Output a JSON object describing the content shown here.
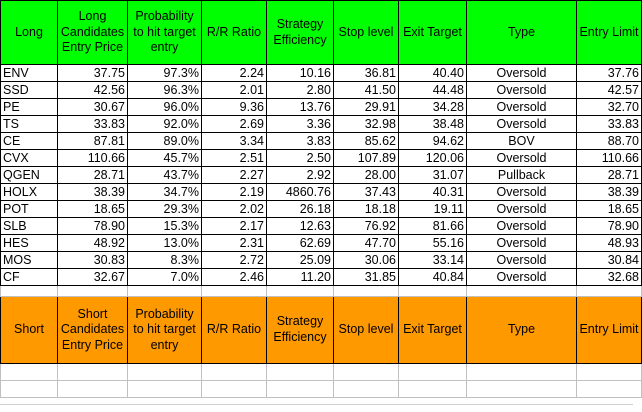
{
  "long_headers": {
    "side": "Long",
    "entry_price": "Long Candidates Entry Price",
    "probability": "Probability to hit target entry",
    "rr_ratio": "R/R Ratio",
    "efficiency": "Strategy Efficiency",
    "stop_level": "Stop level",
    "exit_target": "Exit Target",
    "type": "Type",
    "entry_limit": "Entry Limit"
  },
  "long_rows": [
    {
      "ticker": "ENV",
      "entry_price": "37.75",
      "probability": "97.3%",
      "rr_ratio": "2.24",
      "efficiency": "10.16",
      "stop_level": "36.81",
      "exit_target": "40.40",
      "type": "Oversold",
      "entry_limit": "37.76"
    },
    {
      "ticker": "SSD",
      "entry_price": "42.56",
      "probability": "96.3%",
      "rr_ratio": "2.01",
      "efficiency": "2.80",
      "stop_level": "41.50",
      "exit_target": "44.48",
      "type": "Oversold",
      "entry_limit": "42.57"
    },
    {
      "ticker": "PE",
      "entry_price": "30.67",
      "probability": "96.0%",
      "rr_ratio": "9.36",
      "efficiency": "13.76",
      "stop_level": "29.91",
      "exit_target": "34.28",
      "type": "Oversold",
      "entry_limit": "32.70"
    },
    {
      "ticker": "TS",
      "entry_price": "33.83",
      "probability": "92.0%",
      "rr_ratio": "2.69",
      "efficiency": "3.36",
      "stop_level": "32.98",
      "exit_target": "38.48",
      "type": "Oversold",
      "entry_limit": "33.83"
    },
    {
      "ticker": "CE",
      "entry_price": "87.81",
      "probability": "89.0%",
      "rr_ratio": "3.34",
      "efficiency": "3.83",
      "stop_level": "85.62",
      "exit_target": "94.62",
      "type": "BOV",
      "entry_limit": "88.70"
    },
    {
      "ticker": "CVX",
      "entry_price": "110.66",
      "probability": "45.7%",
      "rr_ratio": "2.51",
      "efficiency": "2.50",
      "stop_level": "107.89",
      "exit_target": "120.06",
      "type": "Oversold",
      "entry_limit": "110.66"
    },
    {
      "ticker": "QGEN",
      "entry_price": "28.71",
      "probability": "43.7%",
      "rr_ratio": "2.27",
      "efficiency": "2.92",
      "stop_level": "28.00",
      "exit_target": "31.07",
      "type": "Pullback",
      "entry_limit": "28.71"
    },
    {
      "ticker": "HOLX",
      "entry_price": "38.39",
      "probability": "34.7%",
      "rr_ratio": "2.19",
      "efficiency": "4860.76",
      "stop_level": "37.43",
      "exit_target": "40.31",
      "type": "Oversold",
      "entry_limit": "38.39"
    },
    {
      "ticker": "POT",
      "entry_price": "18.65",
      "probability": "29.3%",
      "rr_ratio": "2.02",
      "efficiency": "26.18",
      "stop_level": "18.18",
      "exit_target": "19.11",
      "type": "Oversold",
      "entry_limit": "18.65"
    },
    {
      "ticker": "SLB",
      "entry_price": "78.90",
      "probability": "15.3%",
      "rr_ratio": "2.17",
      "efficiency": "12.63",
      "stop_level": "76.92",
      "exit_target": "81.66",
      "type": "Oversold",
      "entry_limit": "78.90"
    },
    {
      "ticker": "HES",
      "entry_price": "48.92",
      "probability": "13.0%",
      "rr_ratio": "2.31",
      "efficiency": "62.69",
      "stop_level": "47.70",
      "exit_target": "55.16",
      "type": "Oversold",
      "entry_limit": "48.93"
    },
    {
      "ticker": "MOS",
      "entry_price": "30.83",
      "probability": "8.3%",
      "rr_ratio": "2.72",
      "efficiency": "25.09",
      "stop_level": "30.06",
      "exit_target": "33.14",
      "type": "Oversold",
      "entry_limit": "30.84"
    },
    {
      "ticker": "CF",
      "entry_price": "32.67",
      "probability": "7.0%",
      "rr_ratio": "2.46",
      "efficiency": "11.20",
      "stop_level": "31.85",
      "exit_target": "40.84",
      "type": "Oversold",
      "entry_limit": "32.68"
    }
  ],
  "short_headers": {
    "side": "Short",
    "entry_price": "Short Candidates Entry Price",
    "probability": "Probability to hit target entry",
    "rr_ratio": "R/R Ratio",
    "efficiency": "Strategy Efficiency",
    "stop_level": "Stop level",
    "exit_target": "Exit Target",
    "type": "Type",
    "entry_limit": "Entry Limit"
  },
  "colors": {
    "long_header_bg": "#00ff00",
    "short_header_bg": "#ff9900",
    "grid": "#000000"
  }
}
